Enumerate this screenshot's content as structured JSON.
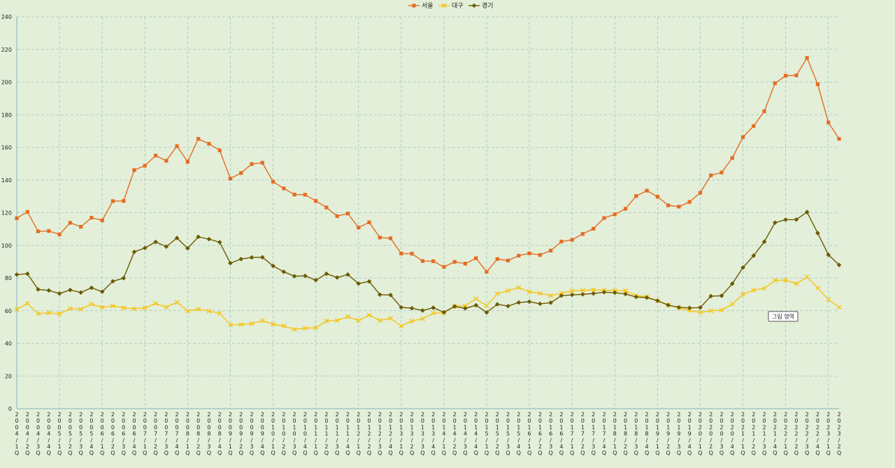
{
  "chart_data": {
    "type": "line",
    "title": "",
    "xlabel": "",
    "ylabel": "",
    "ylim": [
      0,
      240
    ],
    "yticks": [
      0,
      20,
      40,
      60,
      80,
      100,
      120,
      140,
      160,
      180,
      200,
      220,
      240
    ],
    "grid": true,
    "legend_position": "top-center",
    "categories": [
      "2004/1Q",
      "2004/2Q",
      "2004/3Q",
      "2004/4Q",
      "2005/1Q",
      "2005/2Q",
      "2005/3Q",
      "2005/4Q",
      "2006/1Q",
      "2006/2Q",
      "2006/3Q",
      "2006/4Q",
      "2007/1Q",
      "2007/2Q",
      "2007/3Q",
      "2007/4Q",
      "2008/1Q",
      "2008/2Q",
      "2008/3Q",
      "2008/4Q",
      "2009/1Q",
      "2009/2Q",
      "2009/3Q",
      "2009/4Q",
      "2010/1Q",
      "2010/2Q",
      "2010/3Q",
      "2010/4Q",
      "2011/1Q",
      "2011/2Q",
      "2011/3Q",
      "2011/4Q",
      "2012/1Q",
      "2012/2Q",
      "2012/3Q",
      "2012/4Q",
      "2013/1Q",
      "2013/2Q",
      "2013/3Q",
      "2013/4Q",
      "2014/1Q",
      "2014/2Q",
      "2014/3Q",
      "2014/4Q",
      "2015/1Q",
      "2015/2Q",
      "2015/3Q",
      "2015/4Q",
      "2016/1Q",
      "2016/2Q",
      "2016/3Q",
      "2016/4Q",
      "2017/1Q",
      "2017/2Q",
      "2017/3Q",
      "2017/4Q",
      "2018/1Q",
      "2018/2Q",
      "2018/3Q",
      "2018/4Q",
      "2019/1Q",
      "2019/2Q",
      "2019/3Q",
      "2019/4Q",
      "2020/1Q",
      "2020/2Q",
      "2020/3Q",
      "2020/4Q",
      "2021/1Q",
      "2021/2Q",
      "2021/3Q",
      "2021/4Q",
      "2022/1Q",
      "2022/2Q",
      "2022/3Q",
      "2022/4Q",
      "2023/1Q",
      "2023/2Q"
    ],
    "series": [
      {
        "name": "서울",
        "color": "#e46c22",
        "marker": "square",
        "values": [
          116.6,
          120.5,
          108.6,
          108.8,
          106.7,
          113.8,
          111.4,
          116.9,
          115.3,
          127.1,
          127.2,
          146.1,
          148.8,
          155.0,
          151.8,
          160.8,
          151.2,
          165.2,
          162.2,
          158.2,
          140.9,
          144.3,
          149.8,
          150.6,
          139.0,
          134.9,
          131.1,
          131.0,
          127.2,
          123.2,
          117.9,
          119.5,
          110.9,
          114.1,
          104.8,
          104.3,
          95.0,
          94.9,
          90.4,
          90.3,
          86.8,
          89.9,
          88.8,
          92.1,
          83.8,
          91.6,
          90.7,
          93.7,
          95.1,
          94.1,
          96.8,
          102.3,
          103.4,
          107.0,
          110.2,
          116.7,
          119.0,
          122.4,
          130.2,
          133.5,
          129.8,
          124.5,
          123.7,
          126.6,
          132.2,
          142.9,
          144.6,
          153.5,
          166.3,
          173.1,
          182.1,
          199.3,
          203.9,
          204.1,
          214.8,
          198.7,
          175.3,
          165.2
        ]
      },
      {
        "name": "대구",
        "color": "#f5c518",
        "marker": "cross",
        "values": [
          60.8,
          64.4,
          58.2,
          58.7,
          58.0,
          61.3,
          60.9,
          64.0,
          62.0,
          62.9,
          61.7,
          61.2,
          61.6,
          64.4,
          62.2,
          65.1,
          59.8,
          60.9,
          59.7,
          58.4,
          51.4,
          51.5,
          52.0,
          53.9,
          51.7,
          50.6,
          48.5,
          49.3,
          49.5,
          53.7,
          54.0,
          56.3,
          53.9,
          57.3,
          54.0,
          55.3,
          50.6,
          53.7,
          55.0,
          58.5,
          58.7,
          62.7,
          63.0,
          67.3,
          63.0,
          70.4,
          72.2,
          74.2,
          71.5,
          70.6,
          69.2,
          70.6,
          72.1,
          72.4,
          72.8,
          72.5,
          72.4,
          72.2,
          69.2,
          68.6,
          66.0,
          63.5,
          61.7,
          60.1,
          58.9,
          59.9,
          60.3,
          64.0,
          70.0,
          72.5,
          73.7,
          78.6,
          78.7,
          76.5,
          80.6,
          73.9,
          66.8,
          62.1
        ]
      },
      {
        "name": "경기",
        "color": "#6b5a00",
        "marker": "diamond",
        "values": [
          82.1,
          82.6,
          73.0,
          72.4,
          70.5,
          72.7,
          71.1,
          74.0,
          71.6,
          78.0,
          79.9,
          96.0,
          98.4,
          102.1,
          99.2,
          104.5,
          98.2,
          105.2,
          103.8,
          101.9,
          89.1,
          91.6,
          92.6,
          92.7,
          87.4,
          83.8,
          81.1,
          81.3,
          78.7,
          82.6,
          80.3,
          82.1,
          76.6,
          77.9,
          69.8,
          69.6,
          62.0,
          61.5,
          60.1,
          61.8,
          59.0,
          62.6,
          61.4,
          63.3,
          58.9,
          63.9,
          62.8,
          65.0,
          65.5,
          64.2,
          64.9,
          69.2,
          69.7,
          70.0,
          70.5,
          71.3,
          71.0,
          70.2,
          68.4,
          68.0,
          66.1,
          63.4,
          62.0,
          61.7,
          61.9,
          68.9,
          69.1,
          76.5,
          86.4,
          93.7,
          102.2,
          113.9,
          115.7,
          115.8,
          120.4,
          107.5,
          94.2,
          88.0
        ]
      }
    ]
  },
  "tooltip": {
    "text": "그림 영역"
  }
}
